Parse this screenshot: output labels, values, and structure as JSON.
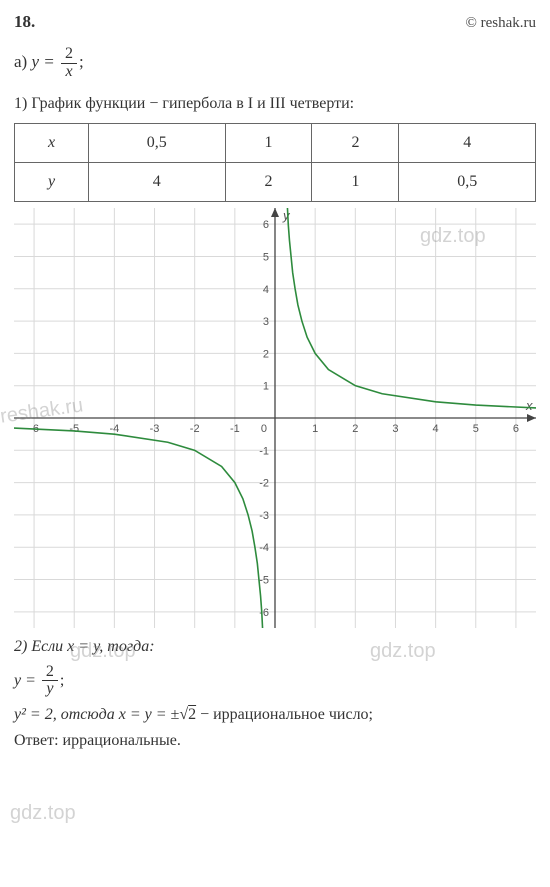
{
  "header": {
    "problem_number": "18.",
    "site": "© reshak.ru"
  },
  "part_a": {
    "label": "а)",
    "equation_lhs": "y =",
    "frac_num": "2",
    "frac_den": "x",
    "suffix": ";"
  },
  "step1": {
    "text": "1) График функции − гипербола в I и III четверти:"
  },
  "table": {
    "row_headers": [
      "x",
      "y"
    ],
    "columns": [
      "0,5",
      "1",
      "2",
      "4"
    ],
    "row_y": [
      "4",
      "2",
      "1",
      "0,5"
    ]
  },
  "chart": {
    "type": "line",
    "xlim": [
      -6.5,
      6.5
    ],
    "ylim": [
      -6.5,
      6.5
    ],
    "xtick_step": 1,
    "ytick_step": 1,
    "grid_color": "#d9d9d9",
    "axis_color": "#444444",
    "background_color": "#ffffff",
    "curve_color": "#2e8b3d",
    "curve_width": 1.6,
    "xlabel": "x",
    "ylabel": "y",
    "tick_font_size": 11,
    "series_pos": [
      [
        0.31,
        6.5
      ],
      [
        0.33,
        6.0
      ],
      [
        0.36,
        5.5
      ],
      [
        0.4,
        5.0
      ],
      [
        0.44,
        4.5
      ],
      [
        0.5,
        4.0
      ],
      [
        0.57,
        3.5
      ],
      [
        0.67,
        3.0
      ],
      [
        0.8,
        2.5
      ],
      [
        1.0,
        2.0
      ],
      [
        1.33,
        1.5
      ],
      [
        2.0,
        1.0
      ],
      [
        2.67,
        0.75
      ],
      [
        4.0,
        0.5
      ],
      [
        5.0,
        0.4
      ],
      [
        6.5,
        0.31
      ]
    ],
    "series_neg": [
      [
        -6.5,
        -0.31
      ],
      [
        -5.0,
        -0.4
      ],
      [
        -4.0,
        -0.5
      ],
      [
        -2.67,
        -0.75
      ],
      [
        -2.0,
        -1.0
      ],
      [
        -1.33,
        -1.5
      ],
      [
        -1.0,
        -2.0
      ],
      [
        -0.8,
        -2.5
      ],
      [
        -0.67,
        -3.0
      ],
      [
        -0.57,
        -3.5
      ],
      [
        -0.5,
        -4.0
      ],
      [
        -0.44,
        -4.5
      ],
      [
        -0.4,
        -5.0
      ],
      [
        -0.36,
        -5.5
      ],
      [
        -0.33,
        -6.0
      ],
      [
        -0.31,
        -6.5
      ]
    ]
  },
  "step2": {
    "intro": "2) Если x = y, тогда:",
    "eq_lhs": "y =",
    "frac_num": "2",
    "frac_den": "y",
    "suffix": ";",
    "sq_line_a": "y² = 2, отсюда  x = y = ±",
    "sq_root": "2",
    "sq_line_b": "   − иррациональное число;",
    "answer": "Ответ:  иррациональные."
  },
  "watermarks": {
    "w1": "gdz.top",
    "w2": "reshak.ru",
    "w3": "gdz.top",
    "w4": "gdz.top",
    "w5": "gdz.top"
  }
}
